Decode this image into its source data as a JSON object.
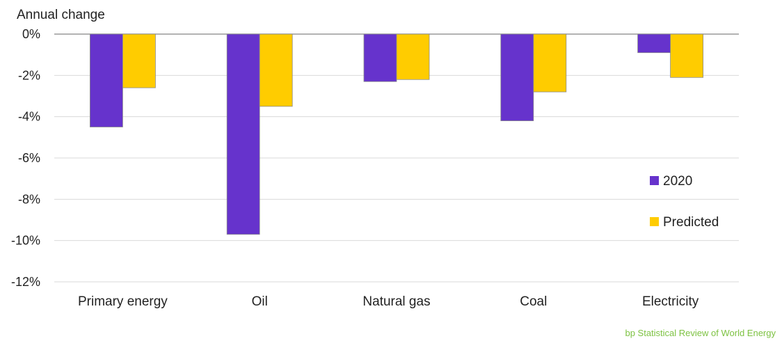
{
  "chart_data": {
    "type": "bar",
    "ylabel": "Annual change",
    "categories": [
      "Primary energy",
      "Oil",
      "Natural gas",
      "Coal",
      "Electricity"
    ],
    "series": [
      {
        "name": "2020",
        "values": [
          -4.5,
          -9.7,
          -2.3,
          -4.2,
          -0.9
        ]
      },
      {
        "name": "Predicted",
        "values": [
          -2.6,
          -3.5,
          -2.2,
          -2.8,
          -2.1
        ]
      }
    ],
    "ylim": [
      -12,
      0
    ],
    "yticks": [
      0,
      -2,
      -4,
      -6,
      -8,
      -10,
      -12
    ],
    "ytick_labels": [
      "0%",
      "-2%",
      "-4%",
      "-6%",
      "-8%",
      "-10%",
      "-12%"
    ],
    "grid": true,
    "legend_position": "right",
    "source": "bp Statistical Review of World Energy"
  },
  "colors": {
    "series_2020": "#6633cc",
    "series_predicted": "#ffcc00",
    "grid": "#d9d9d9",
    "zero_line": "#999999",
    "source": "#7dc242"
  }
}
